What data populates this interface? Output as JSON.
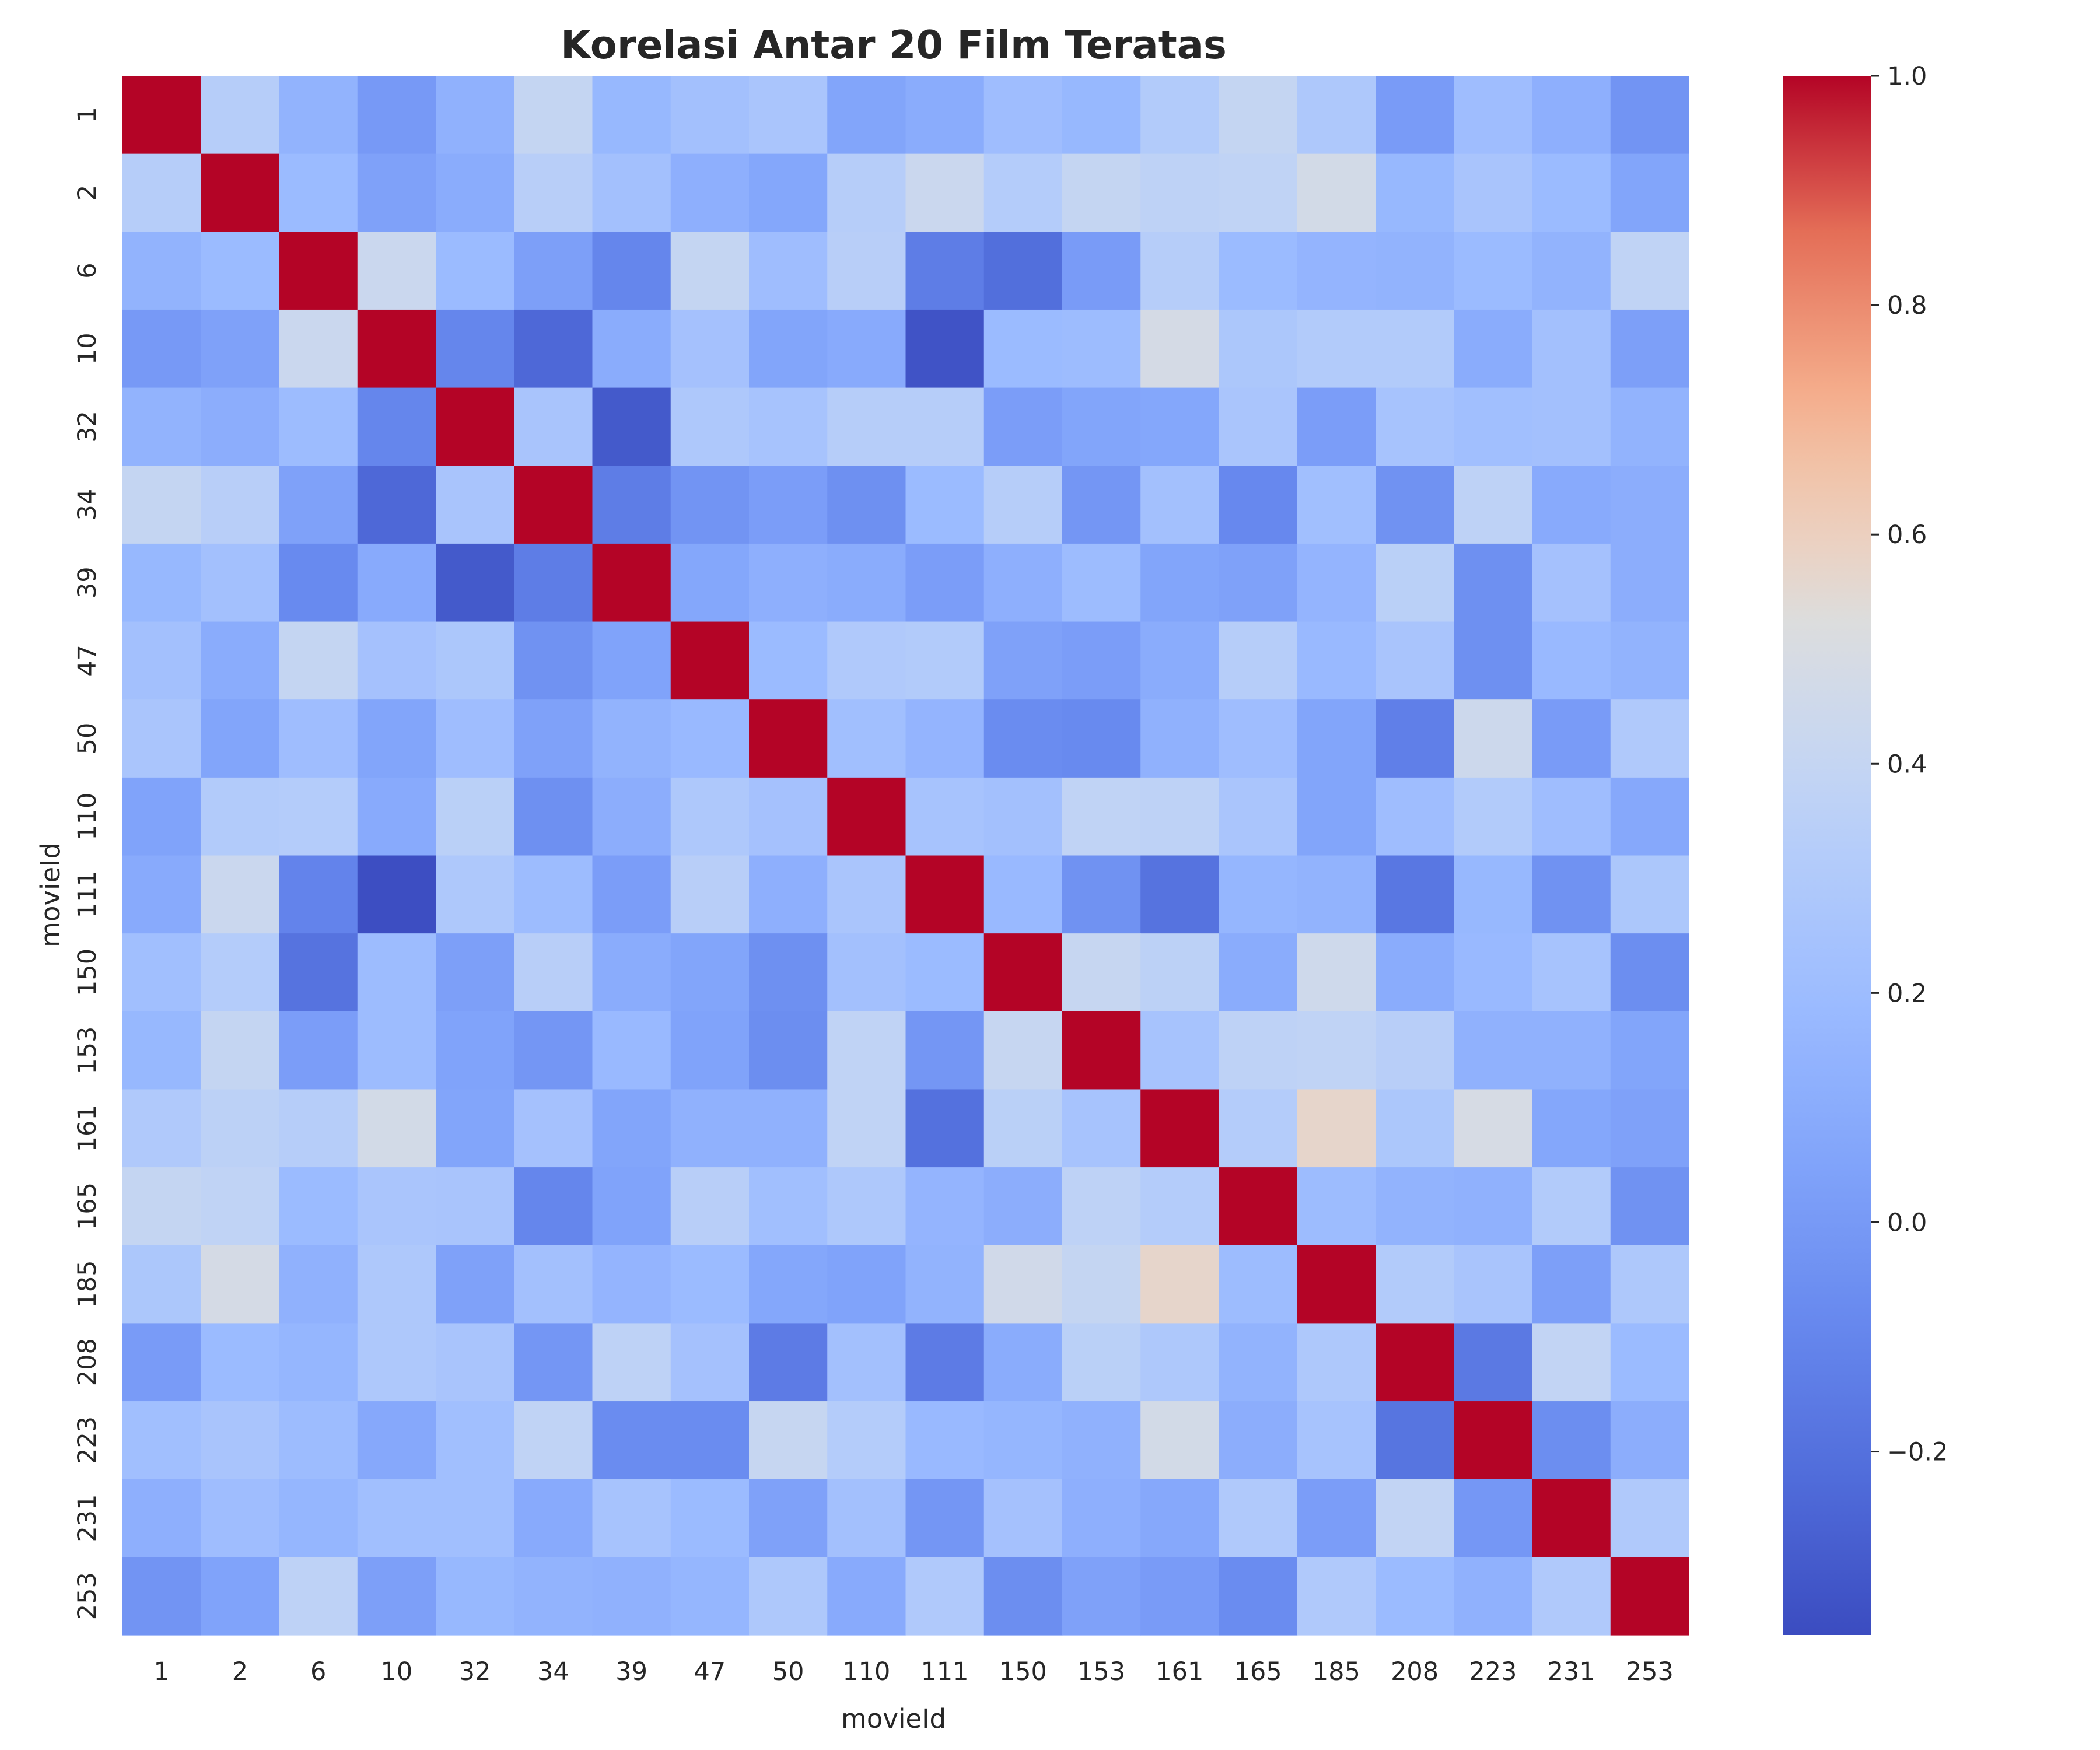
{
  "chart_data": {
    "type": "heatmap",
    "title": "Korelasi Antar 20 Film Teratas",
    "xlabel": "movieId",
    "ylabel": "movieId",
    "categories": [
      "1",
      "2",
      "6",
      "10",
      "32",
      "34",
      "39",
      "47",
      "50",
      "110",
      "111",
      "150",
      "153",
      "161",
      "165",
      "185",
      "208",
      "223",
      "231",
      "253"
    ],
    "colormap": "coolwarm",
    "vmin": -0.36,
    "vmax": 1.0,
    "colorbar_ticks": [
      1.0,
      0.8,
      0.6,
      0.4,
      0.2,
      0.0,
      -0.2
    ],
    "colorbar_tick_labels": [
      "1.0",
      "0.8",
      "0.6",
      "0.4",
      "0.2",
      "0.0",
      "−0.2"
    ],
    "values": [
      [
        1.0,
        0.33,
        0.14,
        0.0,
        0.13,
        0.4,
        0.17,
        0.23,
        0.27,
        0.06,
        0.1,
        0.21,
        0.17,
        0.31,
        0.4,
        0.29,
        0.01,
        0.21,
        0.12,
        -0.03
      ],
      [
        0.33,
        1.0,
        0.19,
        0.04,
        0.1,
        0.34,
        0.23,
        0.12,
        0.07,
        0.33,
        0.43,
        0.32,
        0.4,
        0.37,
        0.38,
        0.47,
        0.17,
        0.26,
        0.19,
        0.06
      ],
      [
        0.14,
        0.19,
        1.0,
        0.43,
        0.19,
        0.03,
        -0.1,
        0.4,
        0.21,
        0.34,
        -0.14,
        -0.21,
        0.01,
        0.33,
        0.19,
        0.15,
        0.14,
        0.19,
        0.14,
        0.38
      ],
      [
        0.0,
        0.04,
        0.43,
        1.0,
        -0.1,
        -0.24,
        0.1,
        0.24,
        0.06,
        0.09,
        -0.33,
        0.19,
        0.2,
        0.48,
        0.28,
        0.31,
        0.31,
        0.1,
        0.23,
        0.03
      ],
      [
        0.14,
        0.11,
        0.2,
        -0.1,
        1.0,
        0.26,
        -0.3,
        0.29,
        0.25,
        0.33,
        0.33,
        0.02,
        0.06,
        0.07,
        0.27,
        0.02,
        0.25,
        0.22,
        0.23,
        0.14
      ],
      [
        0.4,
        0.34,
        0.04,
        -0.24,
        0.26,
        1.0,
        -0.14,
        -0.03,
        0.02,
        -0.05,
        0.19,
        0.33,
        -0.02,
        0.23,
        -0.09,
        0.22,
        -0.04,
        0.37,
        0.09,
        0.11
      ],
      [
        0.17,
        0.23,
        -0.08,
        0.09,
        -0.3,
        -0.14,
        1.0,
        0.07,
        0.12,
        0.1,
        0.02,
        0.12,
        0.2,
        0.06,
        0.04,
        0.15,
        0.35,
        -0.05,
        0.24,
        0.11
      ],
      [
        0.23,
        0.1,
        0.4,
        0.24,
        0.28,
        -0.04,
        0.05,
        1.0,
        0.19,
        0.3,
        0.31,
        0.04,
        0.02,
        0.1,
        0.33,
        0.18,
        0.26,
        -0.05,
        0.18,
        0.14
      ],
      [
        0.27,
        0.06,
        0.21,
        0.06,
        0.21,
        0.04,
        0.14,
        0.18,
        1.0,
        0.22,
        0.15,
        -0.07,
        -0.08,
        0.13,
        0.21,
        0.06,
        -0.13,
        0.44,
        0.01,
        0.3
      ],
      [
        0.05,
        0.31,
        0.32,
        0.09,
        0.35,
        -0.05,
        0.11,
        0.29,
        0.24,
        1.0,
        0.25,
        0.23,
        0.38,
        0.37,
        0.27,
        0.06,
        0.21,
        0.31,
        0.21,
        0.08
      ],
      [
        0.09,
        0.43,
        -0.11,
        -0.35,
        0.29,
        0.2,
        0.02,
        0.34,
        0.12,
        0.27,
        1.0,
        0.18,
        -0.04,
        -0.19,
        0.16,
        0.14,
        -0.17,
        0.17,
        -0.04,
        0.28
      ],
      [
        0.22,
        0.32,
        -0.19,
        0.2,
        0.03,
        0.34,
        0.1,
        0.06,
        -0.05,
        0.23,
        0.19,
        1.0,
        0.41,
        0.36,
        0.1,
        0.45,
        0.1,
        0.18,
        0.25,
        -0.06
      ],
      [
        0.17,
        0.4,
        0.02,
        0.2,
        0.05,
        -0.02,
        0.18,
        0.05,
        -0.06,
        0.38,
        -0.02,
        0.41,
        1.0,
        0.25,
        0.37,
        0.38,
        0.34,
        0.13,
        0.13,
        0.06
      ],
      [
        0.3,
        0.36,
        0.33,
        0.47,
        0.06,
        0.24,
        0.06,
        0.13,
        0.13,
        0.38,
        -0.2,
        0.35,
        0.25,
        1.0,
        0.32,
        0.57,
        0.28,
        0.49,
        0.07,
        0.04
      ],
      [
        0.4,
        0.38,
        0.19,
        0.27,
        0.26,
        -0.1,
        0.05,
        0.34,
        0.22,
        0.29,
        0.15,
        0.11,
        0.37,
        0.32,
        1.0,
        0.2,
        0.14,
        0.13,
        0.31,
        -0.04
      ],
      [
        0.28,
        0.48,
        0.13,
        0.29,
        0.04,
        0.23,
        0.15,
        0.19,
        0.07,
        0.05,
        0.14,
        0.46,
        0.4,
        0.57,
        0.2,
        1.0,
        0.31,
        0.26,
        0.03,
        0.29
      ],
      [
        0.01,
        0.19,
        0.16,
        0.29,
        0.26,
        -0.02,
        0.37,
        0.24,
        -0.15,
        0.23,
        -0.15,
        0.1,
        0.35,
        0.29,
        0.14,
        0.29,
        1.0,
        -0.16,
        0.39,
        0.19
      ],
      [
        0.22,
        0.26,
        0.2,
        0.08,
        0.22,
        0.38,
        -0.07,
        -0.07,
        0.41,
        0.32,
        0.18,
        0.16,
        0.13,
        0.47,
        0.11,
        0.25,
        -0.18,
        1.0,
        -0.06,
        0.11
      ],
      [
        0.12,
        0.21,
        0.16,
        0.22,
        0.22,
        0.09,
        0.25,
        0.19,
        0.04,
        0.23,
        -0.02,
        0.24,
        0.12,
        0.08,
        0.3,
        0.02,
        0.39,
        -0.01,
        1.0,
        0.3
      ],
      [
        -0.03,
        0.05,
        0.37,
        0.03,
        0.17,
        0.14,
        0.13,
        0.16,
        0.29,
        0.09,
        0.3,
        -0.06,
        0.04,
        0.01,
        -0.07,
        0.3,
        0.19,
        0.13,
        0.3,
        1.0
      ]
    ],
    "grid": false,
    "legend": "colorbar-right"
  }
}
